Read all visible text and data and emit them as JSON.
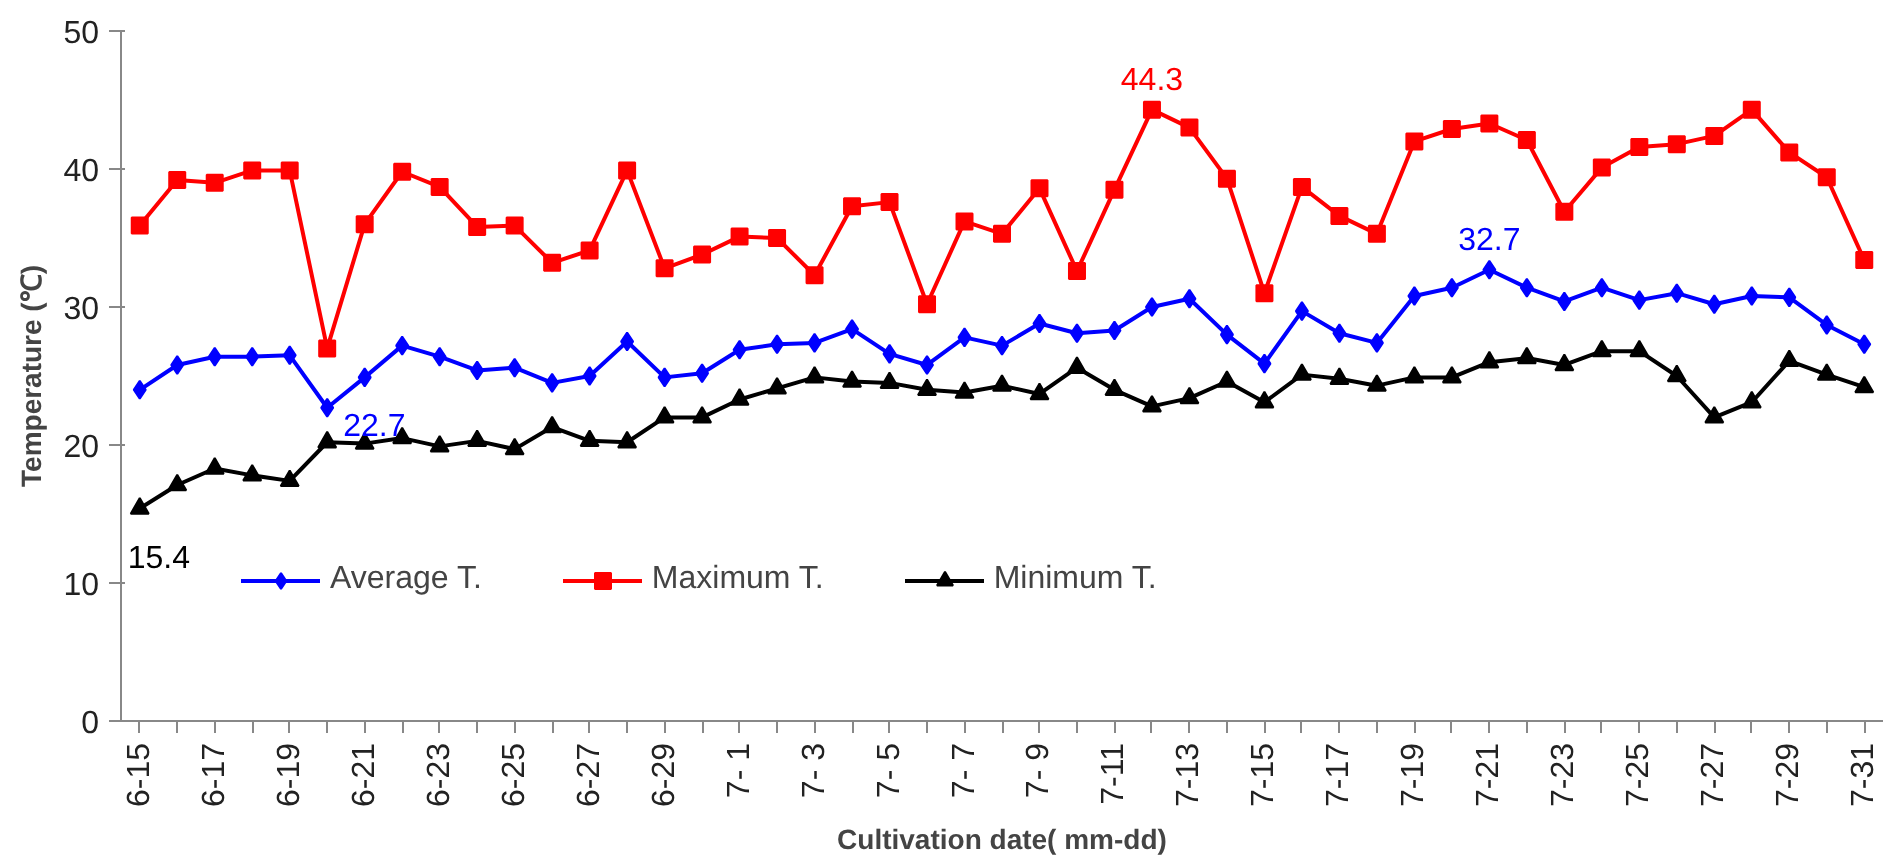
{
  "chart_data": {
    "type": "line",
    "xlabel": "Cultivation date( mm-dd)",
    "ylabel": "Temperature (℃)",
    "categories": [
      "6-15",
      null,
      "6-17",
      null,
      "6-19",
      null,
      "6-21",
      null,
      "6-23",
      null,
      "6-25",
      null,
      "6-27",
      null,
      "6-29",
      null,
      "7- 1",
      null,
      "7- 3",
      null,
      "7- 5",
      null,
      "7- 7",
      null,
      "7- 9",
      null,
      "7-11",
      null,
      "7-13",
      null,
      "7-15",
      null,
      "7-17",
      null,
      "7-19",
      null,
      "7-21",
      null,
      "7-23",
      null,
      "7-25",
      null,
      "7-27",
      null,
      "7-29",
      null,
      "7-31"
    ],
    "series": [
      {
        "name": "Average T.",
        "color": "#0000ff",
        "marker": "diamond",
        "value_labels": [
          null,
          null,
          null,
          null,
          null,
          "22.7",
          null,
          null,
          null,
          null,
          null,
          null,
          null,
          null,
          null,
          null,
          null,
          null,
          null,
          null,
          null,
          null,
          null,
          null,
          null,
          null,
          null,
          null,
          null,
          null,
          null,
          null,
          null,
          null,
          null,
          null,
          "32.7",
          null,
          null,
          null,
          null,
          null,
          null,
          null,
          null,
          null,
          null
        ],
        "values": [
          24.0,
          25.8,
          26.4,
          26.4,
          26.5,
          22.7,
          24.9,
          27.2,
          26.4,
          25.4,
          25.6,
          24.5,
          25.0,
          27.5,
          24.9,
          25.2,
          26.9,
          27.3,
          27.4,
          28.4,
          26.6,
          25.8,
          27.8,
          27.2,
          28.8,
          28.1,
          28.3,
          30.0,
          30.6,
          28.0,
          25.9,
          29.7,
          28.1,
          27.4,
          30.8,
          31.4,
          32.7,
          31.4,
          30.4,
          31.4,
          30.5,
          31.0,
          30.2,
          30.8,
          30.7,
          28.7,
          27.3
        ]
      },
      {
        "name": "Maximum T.",
        "color": "#ff0000",
        "marker": "square",
        "value_labels": [
          null,
          null,
          null,
          null,
          null,
          null,
          null,
          null,
          null,
          null,
          null,
          null,
          null,
          null,
          null,
          null,
          null,
          null,
          null,
          null,
          null,
          null,
          null,
          null,
          null,
          null,
          null,
          "44.3",
          null,
          null,
          null,
          null,
          null,
          null,
          null,
          null,
          null,
          null,
          null,
          null,
          null,
          null,
          null,
          null,
          null,
          null,
          null
        ],
        "values": [
          35.9,
          39.2,
          39.0,
          39.9,
          39.9,
          27.0,
          36.0,
          39.8,
          38.7,
          35.8,
          35.9,
          33.2,
          34.1,
          39.9,
          32.8,
          33.8,
          35.1,
          35.0,
          32.3,
          37.3,
          37.6,
          30.2,
          36.2,
          35.3,
          38.6,
          32.6,
          38.5,
          44.3,
          43.0,
          39.3,
          31.0,
          38.7,
          36.6,
          35.3,
          42.0,
          42.9,
          43.3,
          42.1,
          36.9,
          40.1,
          41.6,
          41.8,
          42.4,
          44.3,
          41.2,
          39.4,
          33.4
        ]
      },
      {
        "name": "Minimum T.",
        "color": "#000000",
        "marker": "triangle",
        "value_labels": [
          "15.4",
          null,
          null,
          null,
          null,
          null,
          null,
          null,
          null,
          null,
          null,
          null,
          null,
          null,
          null,
          null,
          null,
          null,
          null,
          null,
          null,
          null,
          null,
          null,
          null,
          null,
          null,
          null,
          null,
          null,
          null,
          null,
          null,
          null,
          null,
          null,
          null,
          null,
          null,
          null,
          null,
          null,
          null,
          null,
          null,
          null,
          null
        ],
        "values": [
          15.4,
          17.1,
          18.3,
          17.8,
          17.4,
          20.2,
          20.1,
          20.5,
          19.9,
          20.3,
          19.7,
          21.3,
          20.3,
          20.2,
          22.0,
          22.0,
          23.3,
          24.1,
          24.9,
          24.6,
          24.5,
          24.0,
          23.8,
          24.3,
          23.7,
          25.6,
          24.0,
          22.8,
          23.4,
          24.6,
          23.1,
          25.1,
          24.8,
          24.3,
          24.9,
          24.9,
          26.0,
          26.3,
          25.8,
          26.8,
          26.8,
          25.0,
          22.0,
          23.1,
          26.1,
          25.1,
          24.2
        ]
      }
    ],
    "ylim": [
      0,
      50
    ],
    "yticks": [
      0,
      10,
      20,
      30,
      40,
      50
    ],
    "grid": false,
    "legend": "bottom left",
    "line_style": "solid"
  }
}
